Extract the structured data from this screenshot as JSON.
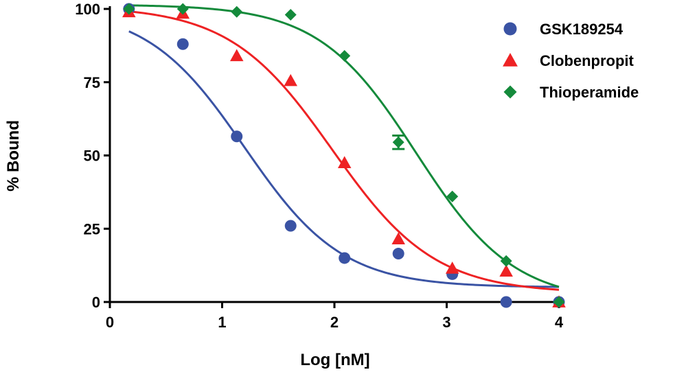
{
  "chart_data": {
    "type": "scatter",
    "xlabel": "Log [nM]",
    "ylabel": "% Bound",
    "xlim": [
      0,
      4
    ],
    "ylim": [
      0,
      100
    ],
    "x_ticks": [
      0,
      1,
      2,
      3,
      4
    ],
    "y_ticks": [
      0,
      25,
      50,
      75,
      100
    ],
    "grid": false,
    "legend_position": "top-right",
    "series": [
      {
        "name": "GSK189254",
        "color": "#3a53a4",
        "marker": "circle",
        "x": [
          0.17,
          0.65,
          1.13,
          1.61,
          2.09,
          2.57,
          3.05,
          3.53,
          4.0
        ],
        "y": [
          100,
          88,
          56.5,
          26,
          15,
          16.5,
          9.5,
          0,
          0
        ],
        "fit": {
          "model": "sigmoid",
          "top": 100.5,
          "bottom": 5,
          "logIC50": 1.2,
          "hill": -1.0
        }
      },
      {
        "name": "Clobenpropit",
        "color": "#ee2224",
        "marker": "triangle",
        "x": [
          0.17,
          0.65,
          1.13,
          1.61,
          2.09,
          2.57,
          3.05,
          3.53,
          4.0
        ],
        "y": [
          99,
          98.5,
          84,
          75.5,
          47.5,
          21.5,
          11.5,
          10.5,
          0
        ],
        "fit": {
          "model": "sigmoid",
          "top": 101,
          "bottom": 3,
          "logIC50": 1.98,
          "hill": -0.95
        }
      },
      {
        "name": "Thioperamide",
        "color": "#148a3b",
        "marker": "diamond",
        "x": [
          0.17,
          0.65,
          1.13,
          1.61,
          2.09,
          2.57,
          3.05,
          3.53,
          4.0
        ],
        "y": [
          100,
          100,
          99,
          98,
          84,
          54.5,
          36,
          14,
          0
        ],
        "y_error": [
          0,
          0,
          0,
          0,
          0,
          2.3,
          0,
          0,
          0
        ],
        "fit": {
          "model": "sigmoid",
          "top": 101.5,
          "bottom": 0,
          "logIC50": 2.73,
          "hill": -1.0
        }
      }
    ]
  }
}
